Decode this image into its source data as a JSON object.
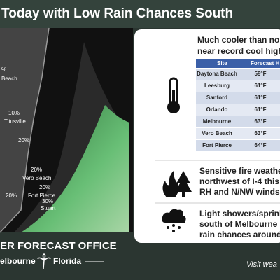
{
  "header": {
    "title": "Today with Low Rain Chances South"
  },
  "map": {
    "labels": [
      "%",
      "Beach",
      "10%",
      "Titusville",
      "20%",
      "20%",
      "Vero Beach",
      "20%",
      "Fort Pierce",
      "20%",
      "30%",
      "Stuart"
    ]
  },
  "panel": {
    "headline": [
      "Much cooler than norm",
      "near record cool highs"
    ],
    "table": {
      "header": [
        "Site",
        "Forecast H"
      ],
      "rows": [
        [
          "Daytona Beach",
          "59°F"
        ],
        [
          "Leesburg",
          "61°F"
        ],
        [
          "Sanford",
          "61°F"
        ],
        [
          "Orlando",
          "61°F"
        ],
        [
          "Melbourne",
          "63°F"
        ],
        [
          "Vero Beach",
          "63°F"
        ],
        [
          "Fort Pierce",
          "64°F"
        ]
      ]
    },
    "fire": [
      "Sensitive fire weathe",
      "northwest of I-4 this a",
      "RH and N/NW winds"
    ],
    "showers": [
      "Light showers/sprink",
      "south of Melbourne i",
      "rain chances around"
    ]
  },
  "footer": {
    "office": "ER FORECAST OFFICE",
    "city": "elbourne",
    "state": "Florida",
    "visit": "Visit wea"
  }
}
